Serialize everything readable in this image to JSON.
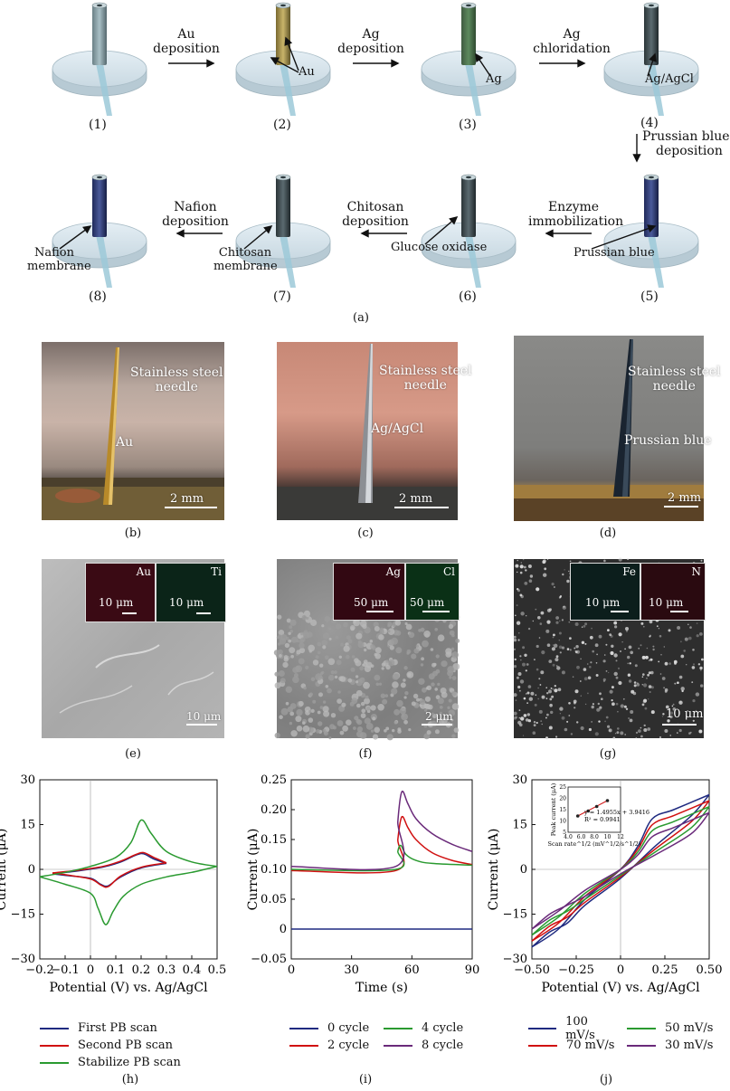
{
  "panel_a": {
    "label": "(a)",
    "stage_numbers": [
      "(1)",
      "(2)",
      "(3)",
      "(4)",
      "(5)",
      "(6)",
      "(7)",
      "(8)"
    ],
    "steps": {
      "au_deposition": [
        "Au",
        "deposition"
      ],
      "ag_deposition": [
        "Ag",
        "deposition"
      ],
      "ag_chloridation": [
        "Ag",
        "chloridation"
      ],
      "prussian_blue_deposition": [
        "Prussian blue",
        "deposition"
      ],
      "enzyme_immobilization": [
        "Enzyme",
        "immobilization"
      ],
      "chitosan_deposition": [
        "Chitosan",
        "deposition"
      ],
      "nafion_deposition": [
        "Nafion",
        "deposition"
      ]
    },
    "callouts": {
      "au": "Au",
      "ag": "Ag",
      "ag_agcl": "Ag/AgCl",
      "prussian_blue": "Prussian blue",
      "glucose_oxidase": "Glucose oxidase",
      "chitosan_membrane": [
        "Chitosan",
        "membrane"
      ],
      "nafion_membrane": [
        "Nafion",
        "membrane"
      ]
    }
  },
  "photos": {
    "b": {
      "caption": "(b)",
      "needle": [
        "Stainless steel",
        "needle"
      ],
      "coating": "Au",
      "scale": "2 mm"
    },
    "c": {
      "caption": "(c)",
      "needle": [
        "Stainless steel",
        "needle"
      ],
      "coating": "Ag/AgCl",
      "scale": "2 mm"
    },
    "d": {
      "caption": "(d)",
      "needle": [
        "Stainless steel",
        "needle"
      ],
      "coating": "Prussian blue",
      "scale": "2 mm"
    }
  },
  "sem": {
    "e": {
      "caption": "(e)",
      "map1": {
        "element": "Au",
        "scale": "10 μm",
        "color": "#a3223a"
      },
      "map2": {
        "element": "Ti",
        "scale": "10 μm",
        "color": "#4cc48a"
      },
      "scale": "10 μm"
    },
    "f": {
      "caption": "(f)",
      "map1": {
        "element": "Ag",
        "scale": "50 μm",
        "color": "#a3223a"
      },
      "map2": {
        "element": "Cl",
        "scale": "50 μm",
        "color": "#3fbf6a"
      },
      "scale": "2 μm"
    },
    "g": {
      "caption": "(g)",
      "map1": {
        "element": "Fe",
        "scale": "10 μm",
        "color": "#4cc4b0"
      },
      "map2": {
        "element": "N",
        "scale": "10 μm",
        "color": "#a3223a"
      },
      "scale": "10 μm"
    }
  },
  "chart_data": [
    {
      "id": "h",
      "caption": "(h)",
      "type": "line",
      "xlabel": "Potential (V) vs. Ag/AgCl",
      "ylabel": "Current (μA)",
      "xlim": [
        -0.2,
        0.5
      ],
      "ylim": [
        -30,
        30
      ],
      "xticks": [
        "-0.2",
        "-0.1",
        "0",
        "0.1",
        "0.2",
        "0.3",
        "0.4",
        "0.5"
      ],
      "yticks": [
        "-30",
        "-15",
        "0",
        "15",
        "30"
      ],
      "series": [
        {
          "name": "First PB scan",
          "color": "#1f2a80",
          "forward": [
            [
              -0.15,
              -1.5
            ],
            [
              -0.05,
              -0.5
            ],
            [
              0.05,
              0.8
            ],
            [
              0.12,
              2.5
            ],
            [
              0.18,
              4.8
            ],
            [
              0.21,
              5.2
            ],
            [
              0.25,
              3.5
            ],
            [
              0.3,
              2.0
            ]
          ],
          "reverse": [
            [
              0.3,
              2.0
            ],
            [
              0.2,
              0.5
            ],
            [
              0.12,
              -2.5
            ],
            [
              0.07,
              -5.5
            ],
            [
              0.04,
              -5.0
            ],
            [
              0.0,
              -3.0
            ],
            [
              -0.1,
              -2.0
            ],
            [
              -0.15,
              -1.5
            ]
          ]
        },
        {
          "name": "Second PB scan",
          "color": "#d01010",
          "forward": [
            [
              -0.15,
              -1.2
            ],
            [
              -0.05,
              -0.3
            ],
            [
              0.05,
              1.0
            ],
            [
              0.12,
              2.8
            ],
            [
              0.18,
              5.0
            ],
            [
              0.21,
              5.6
            ],
            [
              0.25,
              4.0
            ],
            [
              0.3,
              2.2
            ]
          ],
          "reverse": [
            [
              0.3,
              2.2
            ],
            [
              0.2,
              0.7
            ],
            [
              0.12,
              -2.2
            ],
            [
              0.07,
              -5.8
            ],
            [
              0.04,
              -5.2
            ],
            [
              0.0,
              -3.2
            ],
            [
              -0.1,
              -1.8
            ],
            [
              -0.15,
              -1.2
            ]
          ]
        },
        {
          "name": "Stabilize PB scan",
          "color": "#2a9a30",
          "forward": [
            [
              -0.2,
              -2.5
            ],
            [
              -0.1,
              -1.0
            ],
            [
              0.0,
              1.0
            ],
            [
              0.1,
              4.0
            ],
            [
              0.16,
              9.0
            ],
            [
              0.2,
              16.5
            ],
            [
              0.24,
              12.0
            ],
            [
              0.3,
              6.0
            ],
            [
              0.4,
              2.5
            ],
            [
              0.5,
              1.0
            ]
          ],
          "reverse": [
            [
              0.5,
              1.0
            ],
            [
              0.4,
              -1.0
            ],
            [
              0.3,
              -2.5
            ],
            [
              0.2,
              -5.0
            ],
            [
              0.13,
              -9.0
            ],
            [
              0.09,
              -14.0
            ],
            [
              0.06,
              -18.5
            ],
            [
              0.03,
              -13.0
            ],
            [
              0.0,
              -8.0
            ],
            [
              -0.1,
              -5.0
            ],
            [
              -0.2,
              -2.5
            ]
          ]
        }
      ]
    },
    {
      "id": "i",
      "caption": "(i)",
      "type": "line",
      "xlabel": "Time (s)",
      "ylabel": "Current (μA)",
      "xlim": [
        0,
        90
      ],
      "ylim": [
        -0.05,
        0.25
      ],
      "xticks": [
        "0",
        "30",
        "60",
        "90"
      ],
      "yticks": [
        "-0.05",
        "0",
        "0.05",
        "0.10",
        "0.15",
        "0.20",
        "0.25"
      ],
      "series": [
        {
          "name": "0 cycle",
          "color": "#1f2a80",
          "points": [
            [
              0,
              0.0
            ],
            [
              90,
              0.0
            ]
          ]
        },
        {
          "name": "2 cycle",
          "color": "#d01010",
          "points": [
            [
              0,
              0.098
            ],
            [
              52,
              0.098
            ],
            [
              53,
              0.15
            ],
            [
              55,
              0.188
            ],
            [
              58,
              0.17
            ],
            [
              62,
              0.15
            ],
            [
              70,
              0.128
            ],
            [
              80,
              0.115
            ],
            [
              90,
              0.108
            ]
          ]
        },
        {
          "name": "4 cycle",
          "color": "#2a9a30",
          "points": [
            [
              0,
              0.1
            ],
            [
              52,
              0.1
            ],
            [
              53,
              0.13
            ],
            [
              54.5,
              0.14
            ],
            [
              57,
              0.125
            ],
            [
              62,
              0.115
            ],
            [
              70,
              0.11
            ],
            [
              90,
              0.107
            ]
          ]
        },
        {
          "name": "8 cycle",
          "color": "#6a2a7a",
          "points": [
            [
              0,
              0.105
            ],
            [
              52,
              0.105
            ],
            [
              53,
              0.18
            ],
            [
              55,
              0.23
            ],
            [
              58,
              0.21
            ],
            [
              62,
              0.185
            ],
            [
              70,
              0.16
            ],
            [
              80,
              0.142
            ],
            [
              90,
              0.13
            ]
          ]
        }
      ]
    },
    {
      "id": "j",
      "caption": "(j)",
      "type": "line",
      "xlabel": "Potential (V) vs. Ag/AgCl",
      "ylabel": "Current (μA)",
      "xlim": [
        -0.5,
        0.5
      ],
      "ylim": [
        -30,
        30
      ],
      "xticks": [
        "-0.50",
        "-0.25",
        "0",
        "0.25",
        "0.50"
      ],
      "yticks": [
        "-30",
        "-15",
        "0",
        "15",
        "30"
      ],
      "series": [
        {
          "name": "100 mV/s",
          "color": "#1f2a80",
          "forward": [
            [
              -0.5,
              -26
            ],
            [
              -0.35,
              -20
            ],
            [
              -0.2,
              -10
            ],
            [
              0,
              0
            ],
            [
              0.1,
              8
            ],
            [
              0.18,
              17
            ],
            [
              0.3,
              20
            ],
            [
              0.5,
              25
            ]
          ],
          "reverse": [
            [
              0.5,
              25
            ],
            [
              0.4,
              18
            ],
            [
              0.2,
              8
            ],
            [
              0.0,
              -3
            ],
            [
              -0.2,
              -12
            ],
            [
              -0.3,
              -18
            ],
            [
              -0.4,
              -21
            ],
            [
              -0.5,
              -26
            ]
          ]
        },
        {
          "name": "70 mV/s",
          "color": "#d01010",
          "forward": [
            [
              -0.5,
              -24
            ],
            [
              -0.35,
              -18
            ],
            [
              -0.2,
              -9
            ],
            [
              0,
              0
            ],
            [
              0.1,
              7
            ],
            [
              0.18,
              15
            ],
            [
              0.3,
              18
            ],
            [
              0.5,
              23
            ]
          ],
          "reverse": [
            [
              0.5,
              23
            ],
            [
              0.4,
              16
            ],
            [
              0.2,
              7
            ],
            [
              0.0,
              -2.5
            ],
            [
              -0.2,
              -11
            ],
            [
              -0.3,
              -16
            ],
            [
              -0.4,
              -19
            ],
            [
              -0.5,
              -24
            ]
          ]
        },
        {
          "name": "50 mV/s",
          "color": "#2a9a30",
          "forward": [
            [
              -0.5,
              -22
            ],
            [
              -0.35,
              -16
            ],
            [
              -0.2,
              -8
            ],
            [
              0,
              0
            ],
            [
              0.1,
              6
            ],
            [
              0.18,
              13
            ],
            [
              0.3,
              16
            ],
            [
              0.5,
              21
            ]
          ],
          "reverse": [
            [
              0.5,
              21
            ],
            [
              0.4,
              14
            ],
            [
              0.2,
              6
            ],
            [
              0.0,
              -2
            ],
            [
              -0.2,
              -10
            ],
            [
              -0.3,
              -14
            ],
            [
              -0.4,
              -17
            ],
            [
              -0.5,
              -22
            ]
          ]
        },
        {
          "name": "30 mV/s",
          "color": "#6a2a7a",
          "forward": [
            [
              -0.5,
              -20
            ],
            [
              -0.35,
              -14
            ],
            [
              -0.2,
              -7
            ],
            [
              0,
              0
            ],
            [
              0.1,
              5
            ],
            [
              0.18,
              11
            ],
            [
              0.3,
              14
            ],
            [
              0.5,
              19
            ]
          ],
          "reverse": [
            [
              0.5,
              19
            ],
            [
              0.4,
              12
            ],
            [
              0.2,
              5
            ],
            [
              0.0,
              -1.5
            ],
            [
              -0.2,
              -9
            ],
            [
              -0.3,
              -12
            ],
            [
              -0.4,
              -15
            ],
            [
              -0.5,
              -20
            ]
          ]
        }
      ],
      "inset": {
        "xlabel": "Scan rate^1/2 (mV^1/2/s^1/2)",
        "ylabel": "Peak current (μA)",
        "xlim": [
          4.0,
          12.0
        ],
        "ylim": [
          5,
          25
        ],
        "xticks": [
          "4.0",
          "6.0",
          "8.0",
          "10",
          "12"
        ],
        "yticks": [
          "5",
          "10",
          "15",
          "20",
          "25"
        ],
        "points": [
          [
            5.48,
            12.2
          ],
          [
            7.07,
            14.4
          ],
          [
            8.37,
            16.4
          ],
          [
            10.0,
            19.0
          ]
        ],
        "equation": "y = 1.4955x + 3.9416",
        "r2": "R² = 0.9941"
      }
    }
  ]
}
